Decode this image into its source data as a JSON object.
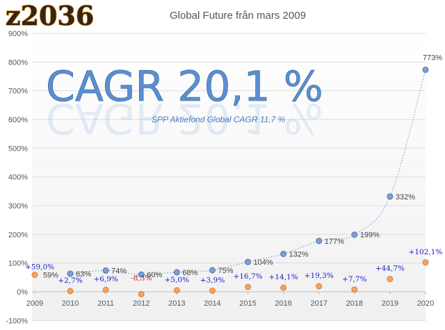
{
  "logo_text": "z2036",
  "chart_data": {
    "type": "scatter",
    "title": "Global Future från mars 2009",
    "annotations": [
      "CAGR 20,1 %",
      "SPP Aktiefond Global CAGR 11,7 %"
    ],
    "x_ticks": [
      "2009",
      "2010",
      "2011",
      "2012",
      "2013",
      "2014",
      "2015",
      "2016",
      "2017",
      "2018",
      "2019",
      "2020"
    ],
    "y_ticks": [
      "-100%",
      "0%",
      "100%",
      "200%",
      "300%",
      "400%",
      "500%",
      "600%",
      "700%",
      "800%",
      "900%"
    ],
    "ylim": [
      -100,
      900
    ],
    "xlim": [
      2009,
      2020
    ],
    "grid": true,
    "series": [
      {
        "color": "#6f8fc6",
        "trendline": "dotted",
        "x": [
          2010,
          2011,
          2012,
          2013,
          2014,
          2015,
          2016,
          2017,
          2018,
          2019,
          2020
        ],
        "values": [
          63,
          74,
          60,
          68,
          75,
          104,
          132,
          177,
          199,
          332,
          773
        ],
        "labels": [
          "63%",
          "74%",
          "60%",
          "68%",
          "75%",
          "104%",
          "132%",
          "177%",
          "199%",
          "332%",
          "773%"
        ]
      },
      {
        "color": "#f0a060",
        "x": [
          2009,
          2010,
          2011,
          2012,
          2013,
          2014,
          2015,
          2016,
          2017,
          2018,
          2019,
          2020
        ],
        "values": [
          59,
          2.7,
          6.9,
          -8.3,
          5.0,
          3.9,
          16.7,
          14.1,
          19.3,
          7.7,
          44.7,
          102.1
        ],
        "labels": [
          "+59,0%",
          "+2,7%",
          "+6,9%",
          "-8,3%",
          "+5,0%",
          "+3,9%",
          "+16,7%",
          "+14,1%",
          "+19,3%",
          "+7,7%",
          "+44,7%",
          "+102,1%"
        ]
      }
    ],
    "extra_labels": [
      {
        "x": 2009,
        "y": 59,
        "text": "59%"
      }
    ]
  }
}
